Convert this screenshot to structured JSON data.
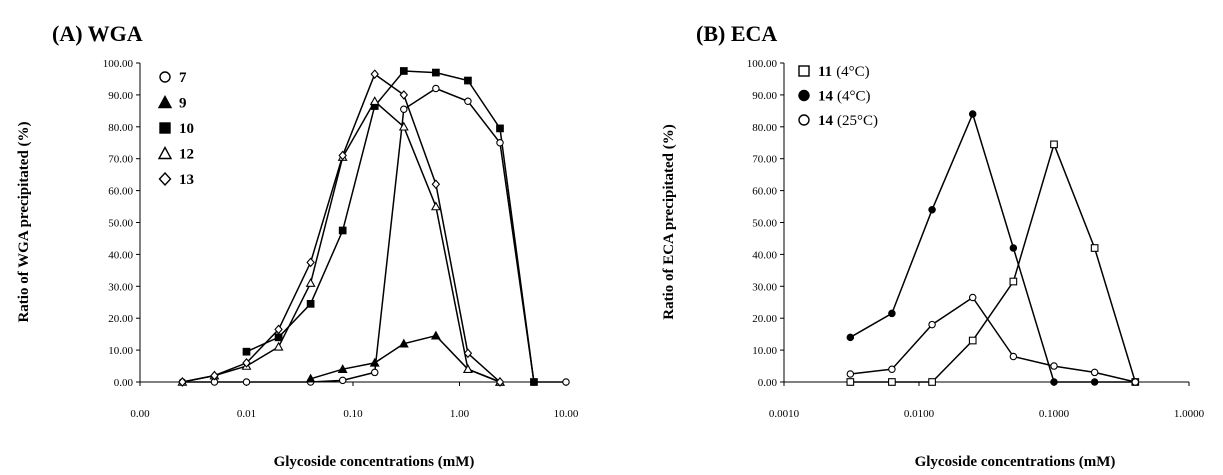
{
  "chart_data": [
    {
      "type": "line",
      "title": "(A) WGA",
      "xlabel": "Glycoside concentrations (mM)",
      "ylabel": "Ratio of WGA precipitated (%)",
      "xscale": "log",
      "xlim": [
        0.001,
        10
      ],
      "ylim": [
        0,
        100
      ],
      "x_tick_labels": [
        "0.00",
        "0.01",
        "0.10",
        "1.00",
        "10.00"
      ],
      "y_tick_labels": [
        "0.00",
        "10.00",
        "20.00",
        "30.00",
        "40.00",
        "50.00",
        "60.00",
        "70.00",
        "80.00",
        "90.00",
        "100.00"
      ],
      "legend_position": "top-left",
      "series": [
        {
          "name": "7",
          "marker": "circle-open",
          "points": [
            [
              0.0025,
              0
            ],
            [
              0.005,
              0
            ],
            [
              0.01,
              0
            ],
            [
              0.04,
              0
            ],
            [
              0.08,
              0.5
            ],
            [
              0.16,
              3
            ],
            [
              0.3,
              85.5
            ],
            [
              0.6,
              92
            ],
            [
              1.2,
              88
            ],
            [
              2.4,
              75
            ],
            [
              5,
              0
            ],
            [
              10,
              0
            ]
          ]
        },
        {
          "name": "9",
          "marker": "triangle-filled",
          "points": [
            [
              0.04,
              1
            ],
            [
              0.08,
              4
            ],
            [
              0.16,
              6
            ],
            [
              0.3,
              12
            ],
            [
              0.6,
              14.5
            ],
            [
              1.2,
              4
            ],
            [
              2.4,
              0
            ]
          ]
        },
        {
          "name": "10",
          "marker": "square-filled",
          "points": [
            [
              0.01,
              9.5
            ],
            [
              0.02,
              14
            ],
            [
              0.04,
              24.5
            ],
            [
              0.08,
              47.5
            ],
            [
              0.16,
              86.5
            ],
            [
              0.3,
              97.5
            ],
            [
              0.6,
              97
            ],
            [
              1.2,
              94.5
            ],
            [
              2.4,
              79.5
            ],
            [
              5,
              0
            ]
          ]
        },
        {
          "name": "12",
          "marker": "triangle-open",
          "points": [
            [
              0.0025,
              0
            ],
            [
              0.005,
              2
            ],
            [
              0.01,
              5
            ],
            [
              0.02,
              11
            ],
            [
              0.04,
              31
            ],
            [
              0.08,
              70.5
            ],
            [
              0.16,
              88
            ],
            [
              0.3,
              80
            ],
            [
              0.6,
              55
            ],
            [
              1.2,
              4
            ],
            [
              2.4,
              0
            ]
          ]
        },
        {
          "name": "13",
          "marker": "diamond-open",
          "points": [
            [
              0.0025,
              0
            ],
            [
              0.005,
              2
            ],
            [
              0.01,
              6
            ],
            [
              0.02,
              16.5
            ],
            [
              0.04,
              37.5
            ],
            [
              0.08,
              71
            ],
            [
              0.16,
              96.5
            ],
            [
              0.3,
              90
            ],
            [
              0.6,
              62
            ],
            [
              1.2,
              9
            ],
            [
              2.4,
              0
            ]
          ]
        }
      ]
    },
    {
      "type": "line",
      "title": "(B) ECA",
      "xlabel": "Glycoside concentrations (mM)",
      "ylabel": "Ratio of ECA precipitated (%)",
      "xscale": "log",
      "xlim": [
        0.001,
        1
      ],
      "ylim": [
        0,
        100
      ],
      "x_tick_labels": [
        "0.0010",
        "0.0100",
        "0.1000",
        "1.0000"
      ],
      "y_tick_labels": [
        "0.00",
        "10.00",
        "20.00",
        "30.00",
        "40.00",
        "50.00",
        "60.00",
        "70.00",
        "80.00",
        "90.00",
        "100.00"
      ],
      "legend_position": "top-left",
      "series": [
        {
          "name": "11",
          "note": "(4°C)",
          "marker": "square-open",
          "points": [
            [
              0.0031,
              0
            ],
            [
              0.0063,
              0
            ],
            [
              0.0125,
              0
            ],
            [
              0.025,
              13
            ],
            [
              0.05,
              31.5
            ],
            [
              0.1,
              74.5
            ],
            [
              0.2,
              42
            ],
            [
              0.4,
              0
            ]
          ]
        },
        {
          "name": "14",
          "note": "(4°C)",
          "marker": "circle-filled",
          "points": [
            [
              0.0031,
              14
            ],
            [
              0.0063,
              21.5
            ],
            [
              0.0125,
              54
            ],
            [
              0.025,
              84
            ],
            [
              0.05,
              42
            ],
            [
              0.1,
              0
            ],
            [
              0.2,
              0
            ],
            [
              0.4,
              0
            ]
          ]
        },
        {
          "name": "14",
          "note": "(25°C)",
          "marker": "circle-open",
          "points": [
            [
              0.0031,
              2.5
            ],
            [
              0.0063,
              4
            ],
            [
              0.0125,
              18
            ],
            [
              0.025,
              26.5
            ],
            [
              0.05,
              8
            ],
            [
              0.1,
              5
            ],
            [
              0.2,
              3
            ],
            [
              0.4,
              0
            ]
          ]
        }
      ]
    }
  ]
}
